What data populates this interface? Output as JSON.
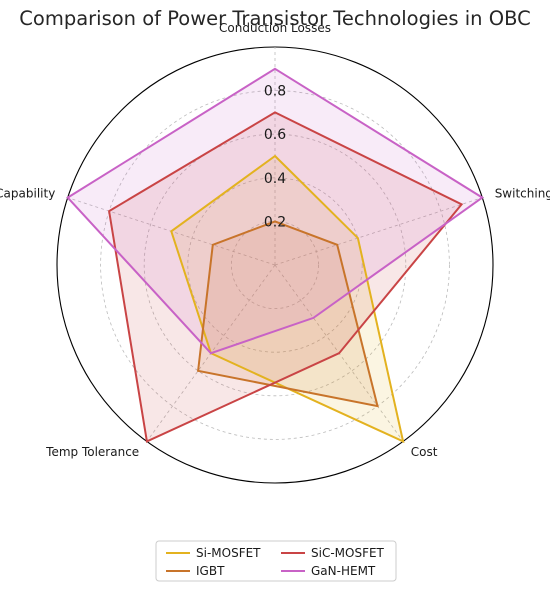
{
  "chart_data": {
    "type": "radar",
    "title": "Comparison of Power Transistor Technologies in OBC",
    "axes": [
      "Conduction Losses",
      "Switching Losses",
      "Cost",
      "Temp Tolerance",
      "Freq Capability"
    ],
    "rlim": [
      0,
      1.0
    ],
    "rticks": [
      0.2,
      0.4,
      0.6,
      0.8
    ],
    "rtick_labels": [
      "0.2",
      "0.4",
      "0.6",
      "0.8"
    ],
    "grid": true,
    "legend_position": "bottom-center",
    "series": [
      {
        "name": "Si-MOSFET",
        "values": [
          0.5,
          0.4,
          1.0,
          0.5,
          0.5
        ],
        "color": "#e3b21f"
      },
      {
        "name": "IGBT",
        "values": [
          0.2,
          0.3,
          0.8,
          0.6,
          0.3
        ],
        "color": "#c8742a"
      },
      {
        "name": "SiC-MOSFET",
        "values": [
          0.7,
          0.9,
          0.5,
          1.0,
          0.8
        ],
        "color": "#c94445"
      },
      {
        "name": "GaN-HEMT",
        "values": [
          0.9,
          1.0,
          0.3,
          0.5,
          1.0
        ],
        "color": "#c862c6"
      }
    ]
  }
}
